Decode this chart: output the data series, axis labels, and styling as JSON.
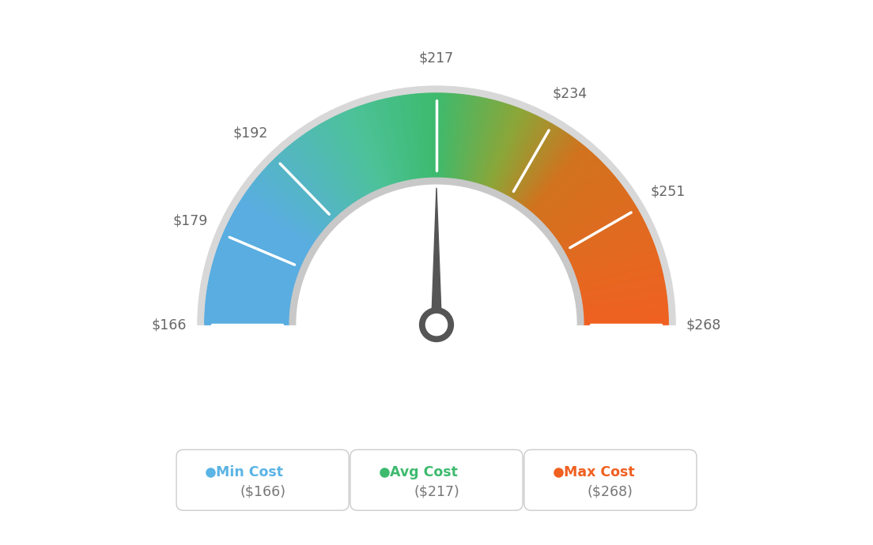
{
  "min_val": 166,
  "avg_val": 217,
  "max_val": 268,
  "tick_labels": [
    "$166",
    "$179",
    "$192",
    "$217",
    "$234",
    "$251",
    "$268"
  ],
  "tick_values": [
    166,
    179,
    192,
    217,
    234,
    251,
    268
  ],
  "legend": [
    {
      "label": "Min Cost",
      "value": "($166)",
      "color": "#5ab4e5"
    },
    {
      "label": "Avg Cost",
      "value": "($217)",
      "color": "#3dba6e"
    },
    {
      "label": "Max Cost",
      "value": "($268)",
      "color": "#f06020"
    }
  ],
  "bg_color": "#ffffff",
  "colors_gradient": [
    [
      0.0,
      [
        0.35,
        0.68,
        0.88
      ]
    ],
    [
      0.18,
      [
        0.35,
        0.68,
        0.88
      ]
    ],
    [
      0.38,
      [
        0.3,
        0.76,
        0.6
      ]
    ],
    [
      0.5,
      [
        0.24,
        0.73,
        0.43
      ]
    ],
    [
      0.62,
      [
        0.55,
        0.65,
        0.22
      ]
    ],
    [
      0.72,
      [
        0.82,
        0.45,
        0.12
      ]
    ],
    [
      1.0,
      [
        0.94,
        0.38,
        0.13
      ]
    ]
  ],
  "outer_ring_color": "#d8d8d8",
  "inner_ring_color": "#c8c8c8",
  "needle_color": "#555555",
  "label_color": "#666666",
  "n_segments": 300
}
